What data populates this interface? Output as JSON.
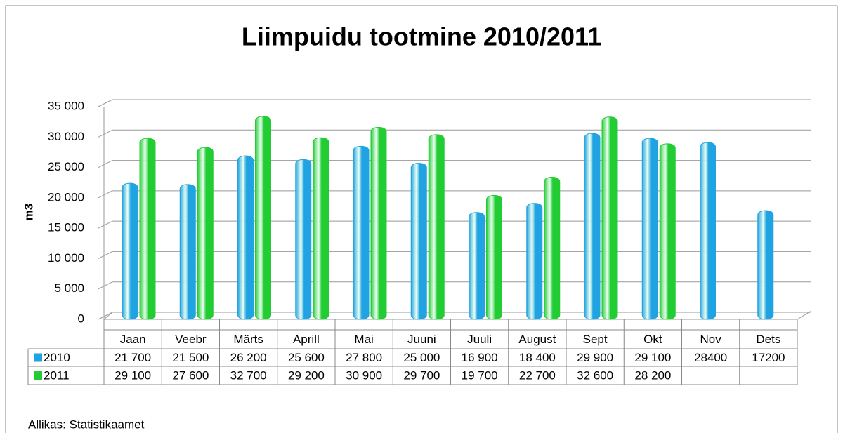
{
  "chart_data": {
    "type": "bar",
    "title": "Liimpuidu tootmine 2010/2011",
    "ylabel": "m3",
    "categories": [
      "Jaan",
      "Veebr",
      "Märts",
      "Aprill",
      "Mai",
      "Juuni",
      "Juuli",
      "August",
      "Sept",
      "Okt",
      "Nov",
      "Dets"
    ],
    "series": [
      {
        "name": "2010",
        "color": "#1fa3e2",
        "values": [
          21700,
          21500,
          26200,
          25600,
          27800,
          25000,
          16900,
          18400,
          29900,
          29100,
          28400,
          17200
        ],
        "value_labels": [
          "21 700",
          "21 500",
          "26 200",
          "25 600",
          "27 800",
          "25 000",
          "16 900",
          "18 400",
          "29 900",
          "29 100",
          "28400",
          "17200"
        ]
      },
      {
        "name": "2011",
        "color": "#22cc33",
        "values": [
          29100,
          27600,
          32700,
          29200,
          30900,
          29700,
          19700,
          22700,
          32600,
          28200,
          null,
          null
        ],
        "value_labels": [
          "29 100",
          "27 600",
          "32 700",
          "29 200",
          "30 900",
          "29 700",
          "19 700",
          "22 700",
          "32 600",
          "28 200",
          null,
          null
        ]
      }
    ],
    "ylim": [
      0,
      35000
    ],
    "yticks": [
      0,
      {
        "value": 5000,
        "label": "5 000"
      },
      {
        "value": 10000,
        "label": "10 000"
      },
      {
        "value": 15000,
        "label": "15 000"
      },
      {
        "value": 20000,
        "label": "20 000"
      },
      {
        "value": 25000,
        "label": "25 000"
      },
      {
        "value": 30000,
        "label": "30 000"
      },
      {
        "value": 35000,
        "label": "35 000"
      }
    ],
    "grid": true,
    "source": "Allikas: Statistikaamet"
  }
}
